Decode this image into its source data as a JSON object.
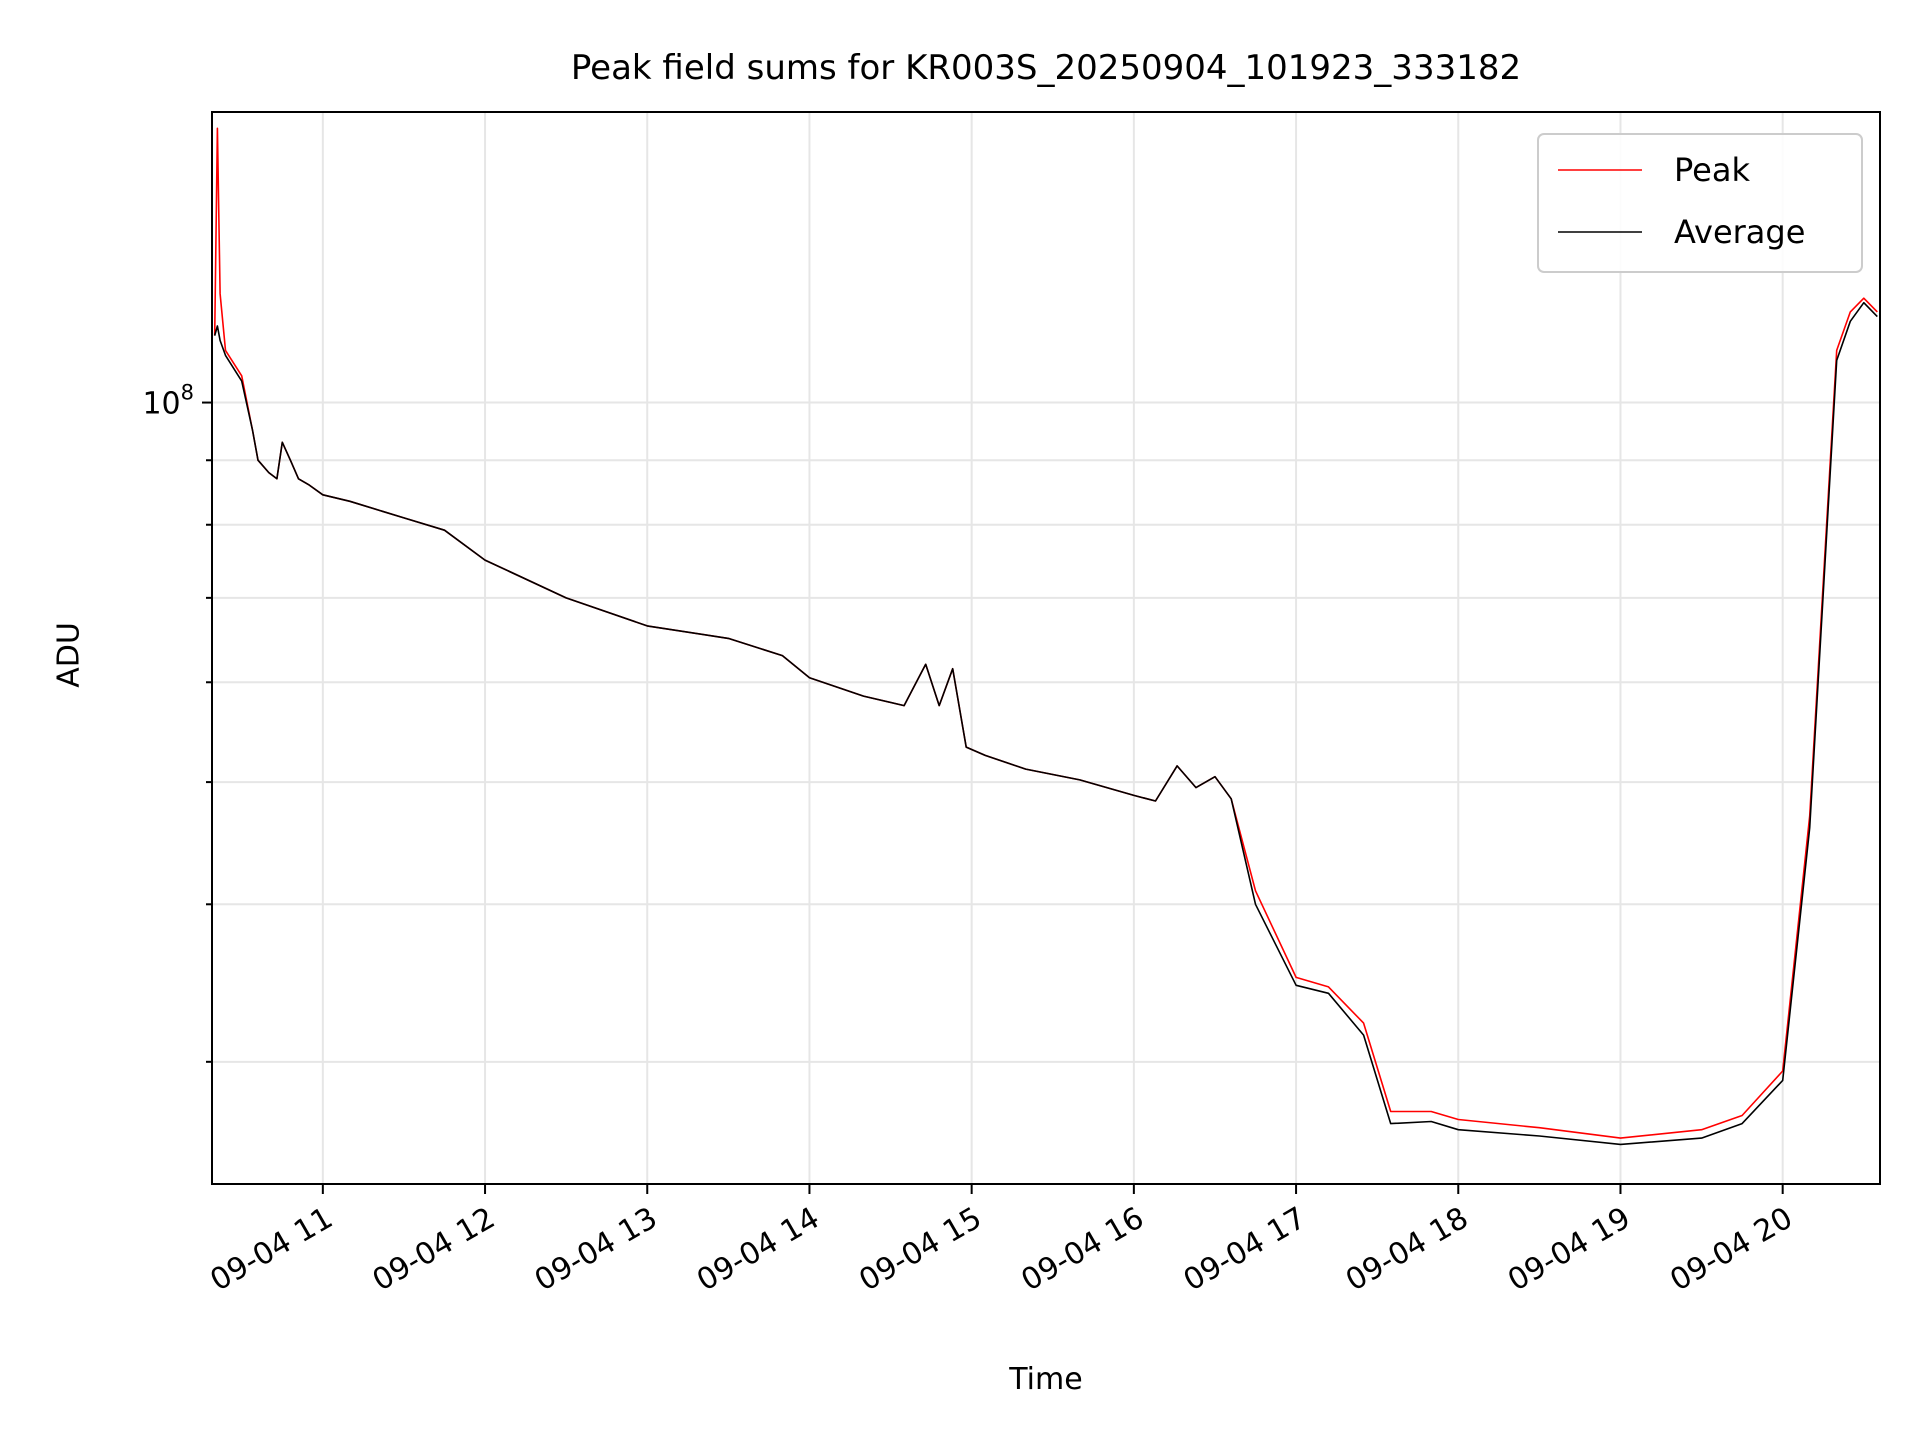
{
  "chart_data": {
    "type": "line",
    "title": "Peak field sums for KR003S_20250904_101923_333182",
    "xlabel": "Time",
    "ylabel": "ADU",
    "yscale": "log",
    "grid": true,
    "legend_position": "top-right",
    "ylim": [
      24000000,
      170000000
    ],
    "xlim": [
      "2025-09-04 10:19",
      "2025-09-04 20:36"
    ],
    "x_ticks": [
      "09-04 11",
      "09-04 12",
      "09-04 13",
      "09-04 14",
      "09-04 15",
      "09-04 16",
      "09-04 17",
      "09-04 18",
      "09-04 19",
      "09-04 20"
    ],
    "y_ticks": [
      {
        "value": 100000000,
        "label": "10^8"
      }
    ],
    "x": [
      "2025-09-04 10:20",
      "2025-09-04 10:21",
      "2025-09-04 10:22",
      "2025-09-04 10:24",
      "2025-09-04 10:30",
      "2025-09-04 10:34",
      "2025-09-04 10:36",
      "2025-09-04 10:40",
      "2025-09-04 10:43",
      "2025-09-04 10:45",
      "2025-09-04 10:48",
      "2025-09-04 10:51",
      "2025-09-04 10:55",
      "2025-09-04 11:00",
      "2025-09-04 11:10",
      "2025-09-04 11:30",
      "2025-09-04 11:45",
      "2025-09-04 12:00",
      "2025-09-04 12:30",
      "2025-09-04 13:00",
      "2025-09-04 13:30",
      "2025-09-04 13:50",
      "2025-09-04 14:00",
      "2025-09-04 14:20",
      "2025-09-04 14:35",
      "2025-09-04 14:43",
      "2025-09-04 14:48",
      "2025-09-04 14:53",
      "2025-09-04 14:58",
      "2025-09-04 15:05",
      "2025-09-04 15:20",
      "2025-09-04 15:40",
      "2025-09-04 16:00",
      "2025-09-04 16:08",
      "2025-09-04 16:16",
      "2025-09-04 16:23",
      "2025-09-04 16:30",
      "2025-09-04 16:36",
      "2025-09-04 16:45",
      "2025-09-04 17:00",
      "2025-09-04 17:12",
      "2025-09-04 17:25",
      "2025-09-04 17:35",
      "2025-09-04 17:50",
      "2025-09-04 18:00",
      "2025-09-04 18:30",
      "2025-09-04 19:00",
      "2025-09-04 19:30",
      "2025-09-04 19:45",
      "2025-09-04 20:00",
      "2025-09-04 20:10",
      "2025-09-04 20:20",
      "2025-09-04 20:25",
      "2025-09-04 20:30",
      "2025-09-04 20:35"
    ],
    "series": [
      {
        "name": "Peak",
        "color": "#ff0000",
        "values": [
          113000000,
          165000000,
          122000000,
          110000000,
          105000000,
          95000000,
          90000000,
          88000000,
          87000000,
          93000000,
          90000000,
          87000000,
          86000000,
          84500000,
          83500000,
          81000000,
          79200000,
          75000000,
          70000000,
          66500000,
          65000000,
          63000000,
          60500000,
          58500000,
          57500000,
          62000000,
          57500000,
          61500000,
          53300000,
          52500000,
          51200000,
          50200000,
          48800000,
          48300000,
          51500000,
          49500000,
          50500000,
          48500000,
          41000000,
          35000000,
          34400000,
          32200000,
          27400000,
          27400000,
          27000000,
          26600000,
          26100000,
          26500000,
          27200000,
          29500000,
          47000000,
          110000000,
          118000000,
          121000000,
          118000000
        ]
      },
      {
        "name": "Average",
        "color": "#000000",
        "values": [
          113000000,
          115000000,
          112000000,
          109000000,
          104000000,
          95000000,
          90000000,
          88000000,
          87000000,
          93000000,
          90000000,
          87000000,
          86000000,
          84500000,
          83500000,
          81000000,
          79200000,
          75000000,
          70000000,
          66500000,
          65000000,
          63000000,
          60500000,
          58500000,
          57500000,
          62000000,
          57500000,
          61500000,
          53300000,
          52500000,
          51200000,
          50200000,
          48800000,
          48300000,
          51500000,
          49500000,
          50500000,
          48500000,
          40000000,
          34500000,
          34000000,
          31500000,
          26800000,
          26900000,
          26500000,
          26200000,
          25800000,
          26100000,
          26800000,
          29000000,
          46000000,
          108000000,
          116000000,
          120000000,
          117000000
        ]
      }
    ]
  }
}
